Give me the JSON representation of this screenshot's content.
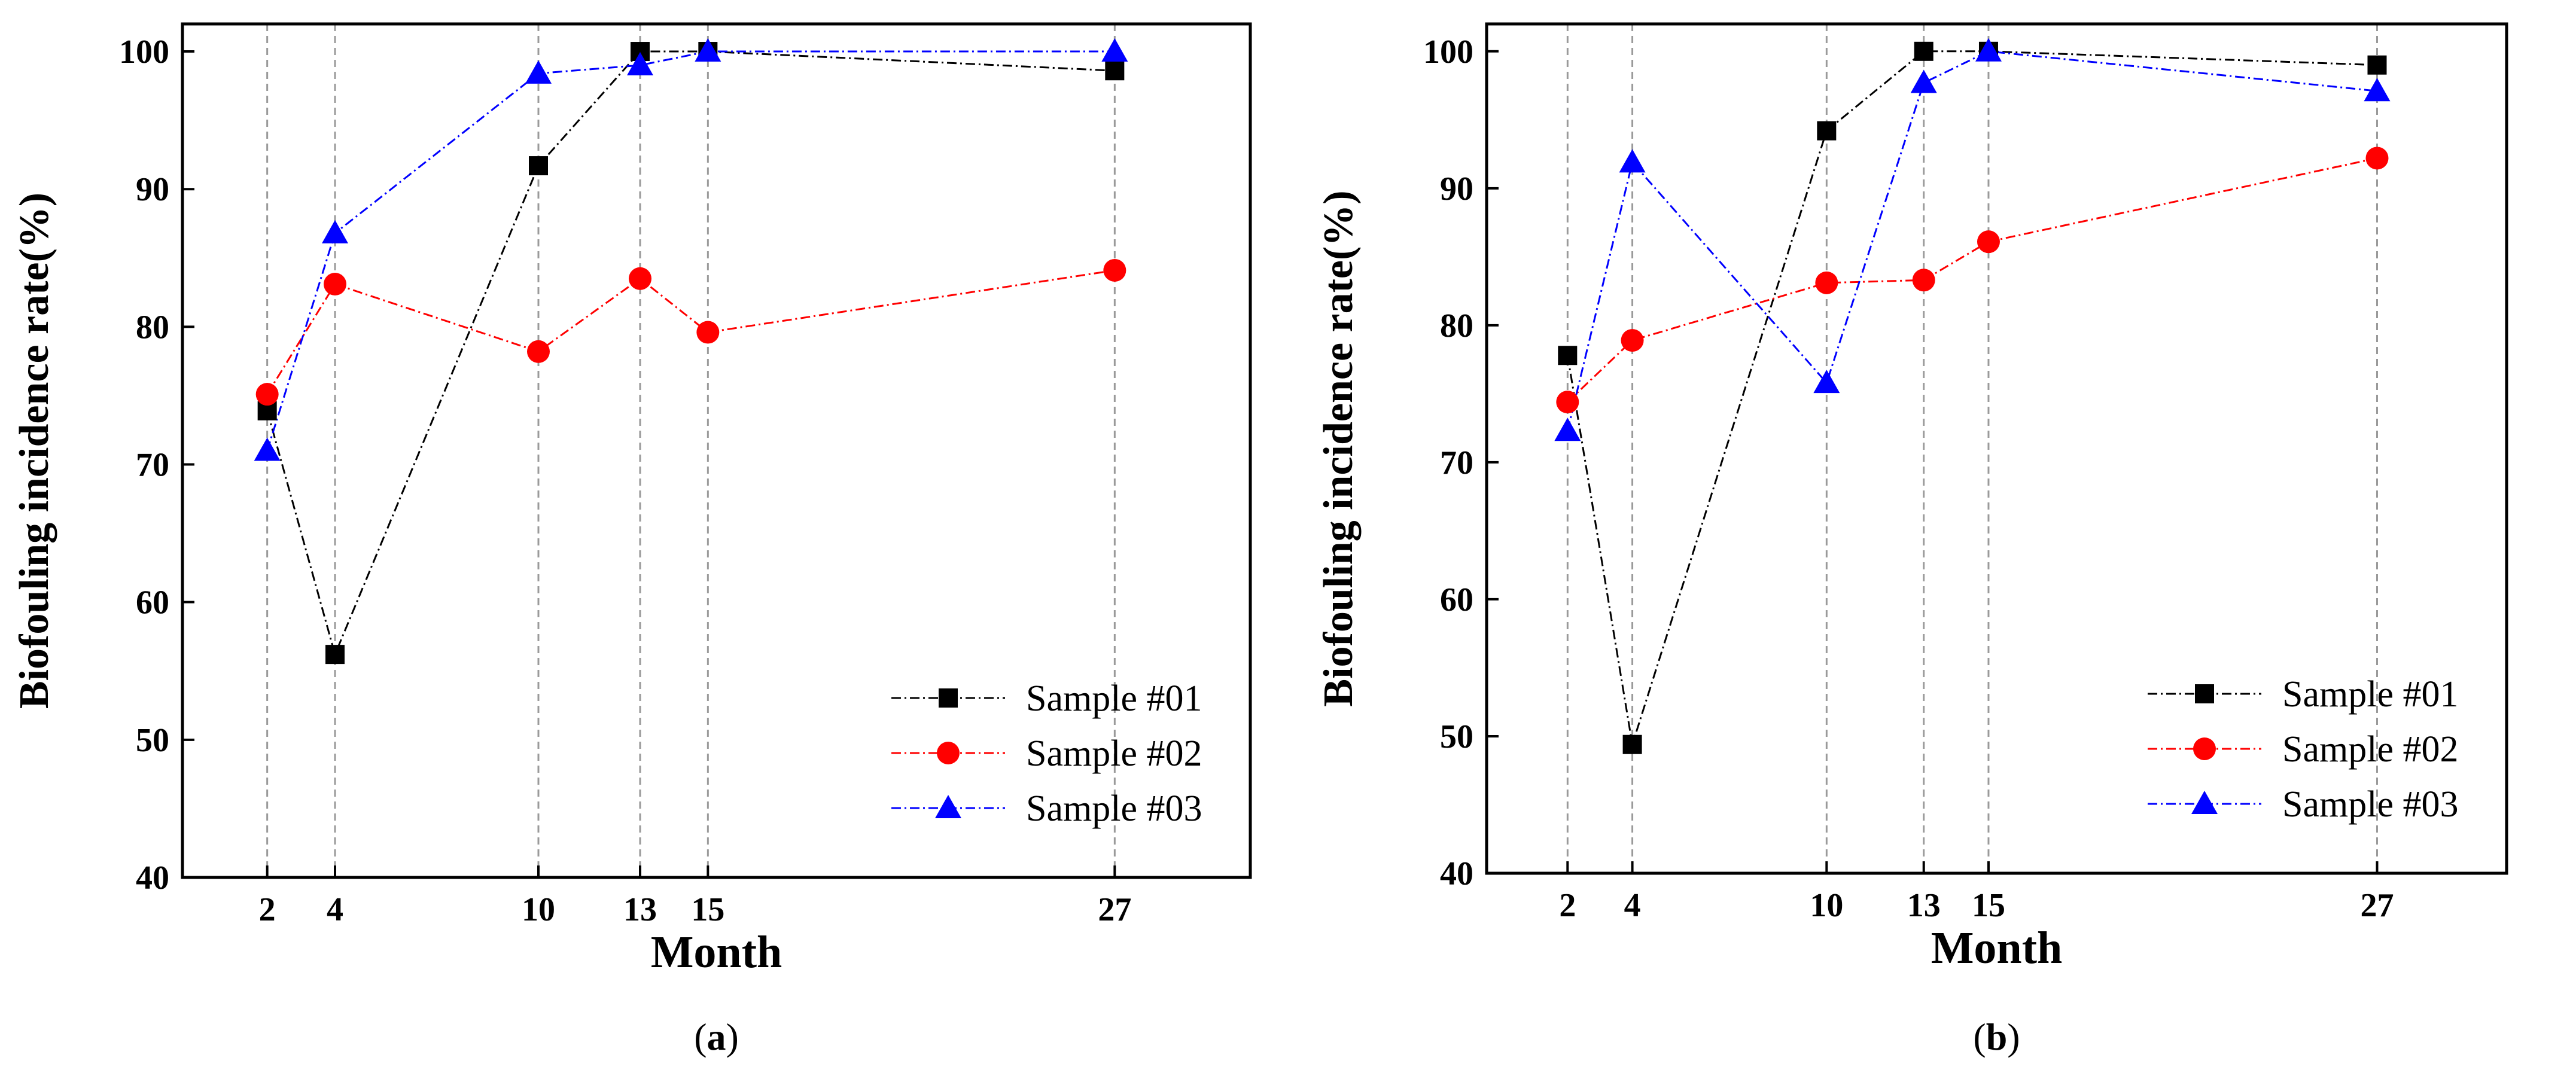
{
  "chart_data": [
    {
      "type": "line",
      "panel_label": "a",
      "xlabel": "Month",
      "ylabel": "Biofouling incidence rate(%)",
      "x": [
        2,
        4,
        10,
        13,
        15,
        27
      ],
      "xticks": [
        "2",
        "4",
        "10",
        "13",
        "15",
        "27"
      ],
      "xlim": [
        -0.5,
        31
      ],
      "ylim": [
        40,
        102
      ],
      "yticks": [
        "40",
        "50",
        "60",
        "70",
        "80",
        "90",
        "100"
      ],
      "vertical_gridlines": true,
      "legend_position": "bottom-right",
      "series": [
        {
          "name": "Sample #01",
          "color": "#000000",
          "marker": "square",
          "values": [
            73.9,
            56.2,
            91.7,
            100,
            100,
            98.6
          ]
        },
        {
          "name": "Sample #02",
          "color": "#ff0000",
          "marker": "circle",
          "values": [
            75.1,
            83.1,
            78.2,
            83.5,
            79.6,
            84.1
          ]
        },
        {
          "name": "Sample #03",
          "color": "#0000ff",
          "marker": "triangle",
          "values": [
            71.0,
            86.8,
            98.4,
            99.0,
            100,
            100
          ]
        }
      ]
    },
    {
      "type": "line",
      "panel_label": "b",
      "xlabel": "Month",
      "ylabel": "Biofouling incidence rate(%)",
      "x": [
        2,
        4,
        10,
        13,
        15,
        27
      ],
      "xticks": [
        "2",
        "4",
        "10",
        "13",
        "15",
        "27"
      ],
      "xlim": [
        -0.5,
        31
      ],
      "ylim": [
        40,
        102
      ],
      "yticks": [
        "40",
        "50",
        "60",
        "70",
        "80",
        "90",
        "100"
      ],
      "vertical_gridlines": true,
      "legend_position": "bottom-right",
      "series": [
        {
          "name": "Sample #01",
          "color": "#000000",
          "marker": "square",
          "values": [
            77.8,
            49.4,
            94.2,
            100,
            100,
            99.0
          ]
        },
        {
          "name": "Sample #02",
          "color": "#ff0000",
          "marker": "circle",
          "values": [
            74.4,
            78.9,
            83.1,
            83.3,
            86.1,
            92.2
          ]
        },
        {
          "name": "Sample #03",
          "color": "#0000ff",
          "marker": "triangle",
          "values": [
            72.3,
            91.9,
            75.8,
            97.7,
            100,
            97.1
          ]
        }
      ]
    }
  ]
}
